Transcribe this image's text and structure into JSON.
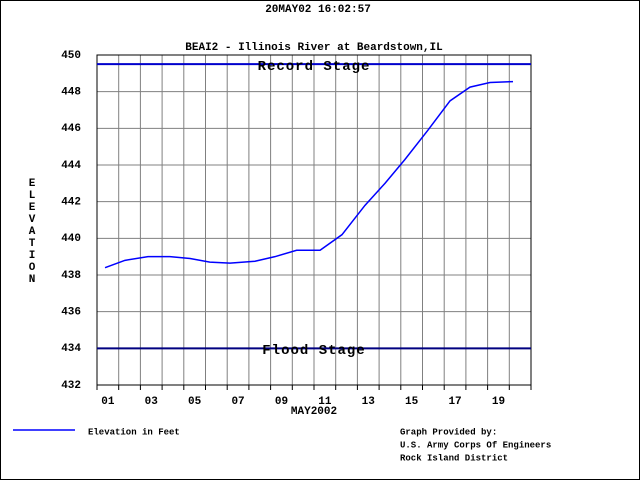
{
  "header": "20MAY02   16:02:57",
  "chart_data": {
    "type": "line",
    "title": "BEAI2 - Illinois River at Beardstown,IL",
    "ylabel": "ELEVATION",
    "xlabel": "MAY2002",
    "x": [
      1.37,
      2.29,
      3.35,
      4.36,
      5.29,
      6.2,
      7.13,
      8.28,
      9.2,
      10.2,
      11.28,
      12.29,
      13.35,
      14.27,
      15.19,
      16.25,
      17.27,
      18.19,
      19.11,
      20.17
    ],
    "series": [
      {
        "name": "Elevation in Feet",
        "color": "#0000ff",
        "values": [
          438.4,
          438.8,
          439.0,
          439.0,
          438.9,
          438.7,
          438.65,
          438.75,
          439.0,
          439.35,
          439.35,
          440.2,
          441.8,
          443.0,
          444.3,
          445.9,
          447.5,
          448.25,
          448.5,
          448.55
        ]
      }
    ],
    "reference_lines": [
      {
        "label": "Record Stage",
        "value": 449.5,
        "color": "#0000cc"
      },
      {
        "label": "Flood Stage",
        "value": 434,
        "color": "#000080"
      }
    ],
    "xlim": [
      1,
      21
    ],
    "xticks": [
      {
        "value": 1.5,
        "label": "01"
      },
      {
        "value": 3.5,
        "label": "03"
      },
      {
        "value": 5.5,
        "label": "05"
      },
      {
        "value": 7.5,
        "label": "07"
      },
      {
        "value": 9.5,
        "label": "09"
      },
      {
        "value": 11.5,
        "label": "11"
      },
      {
        "value": 13.5,
        "label": "13"
      },
      {
        "value": 15.5,
        "label": "15"
      },
      {
        "value": 17.5,
        "label": "17"
      },
      {
        "value": 19.5,
        "label": "19"
      }
    ],
    "ylim": [
      432,
      450
    ],
    "yticks": [
      432,
      434,
      436,
      438,
      440,
      442,
      444,
      446,
      448,
      450
    ],
    "grid": true
  },
  "credit": [
    "Graph Provided by:",
    "U.S. Army Corps Of Engineers",
    "Rock Island District"
  ]
}
